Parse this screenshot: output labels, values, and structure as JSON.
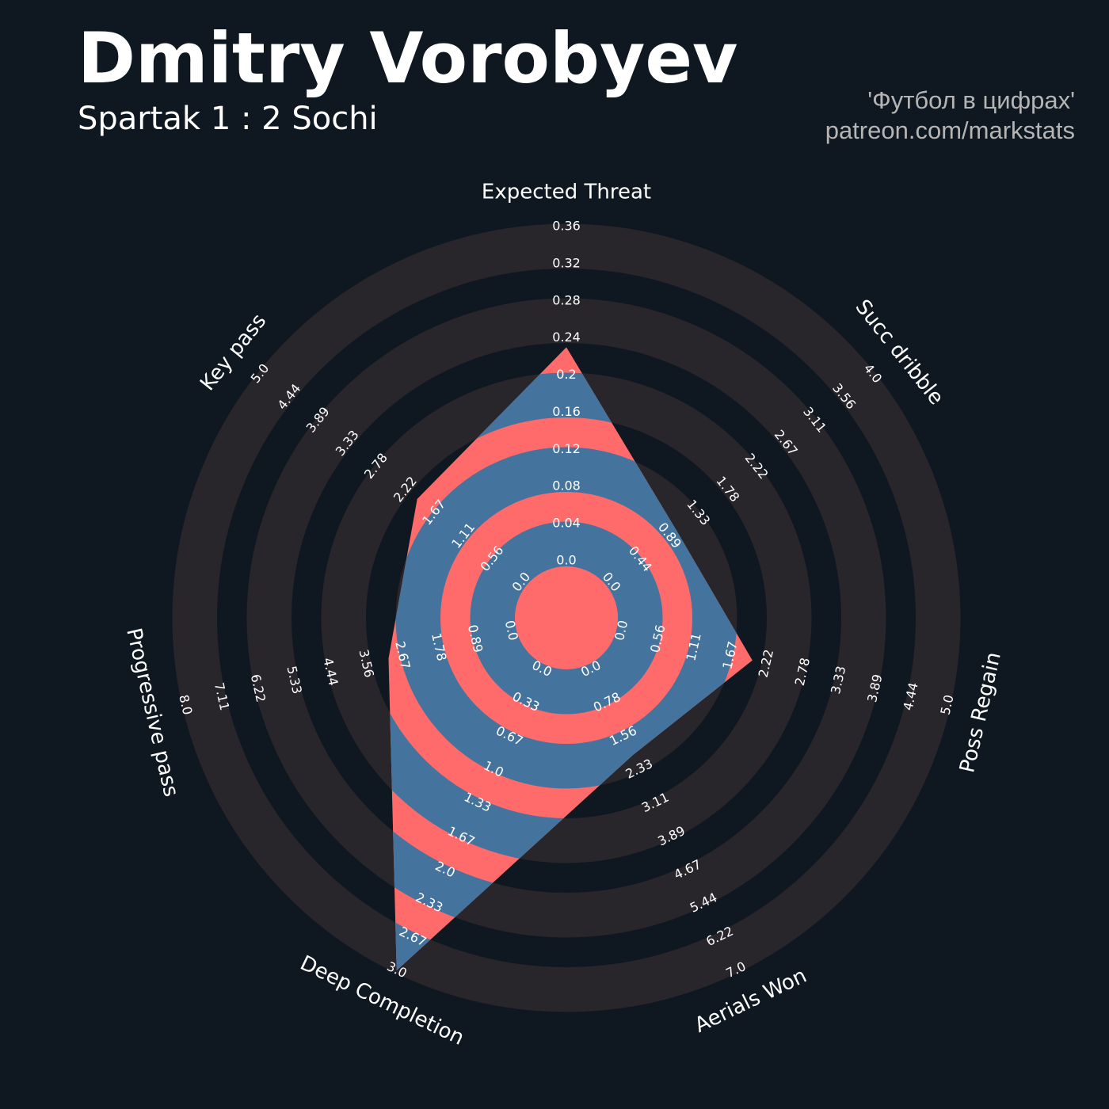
{
  "chart_data": {
    "type": "radar",
    "title": "Dmitry Vorobyev",
    "subtitle": "Spartak 1 : 2 Sochi",
    "annotations": [
      "'Футбол в цифрах'",
      "patreon.com/markstats"
    ],
    "params": [
      "Expected Threat",
      "Succ dribble",
      "Poss Regain",
      "Aerials Won",
      "Deep Completion",
      "Progressive pass",
      "Key pass"
    ],
    "values": [
      0.23,
      1.0,
      2.0,
      2.0,
      3.0,
      3.0,
      2.0
    ],
    "lims": [
      [
        0,
        0.36
      ],
      [
        0,
        4
      ],
      [
        0,
        5
      ],
      [
        0,
        7
      ],
      [
        0,
        3
      ],
      [
        0,
        8
      ],
      [
        0,
        5
      ]
    ],
    "ticks": [
      [
        {
          "value": 0,
          "label": "0.0"
        },
        0.04,
        0.08,
        0.12,
        0.16,
        0.2,
        0.24,
        0.28,
        0.32,
        0.36
      ],
      [
        {
          "value": 0,
          "label": "0.0"
        },
        0.44,
        0.89,
        1.33,
        1.78,
        2.22,
        2.67,
        3.11,
        3.56,
        {
          "value": 4,
          "label": "4.0"
        }
      ],
      [
        {
          "value": 0,
          "label": "0.0"
        },
        0.56,
        1.11,
        1.67,
        2.22,
        2.78,
        3.33,
        3.89,
        4.44,
        {
          "value": 5,
          "label": "5.0"
        }
      ],
      [
        {
          "value": 0,
          "label": "0.0"
        },
        0.78,
        1.56,
        2.33,
        3.11,
        3.89,
        4.67,
        5.44,
        6.22,
        {
          "value": 7,
          "label": "7.0"
        }
      ],
      [
        {
          "value": 0,
          "label": "0.0"
        },
        0.33,
        0.67,
        {
          "value": 1,
          "label": "1.0"
        },
        1.33,
        1.67,
        {
          "value": 2,
          "label": "2.0"
        },
        2.33,
        2.67,
        {
          "value": 3,
          "label": "3.0"
        }
      ],
      [
        {
          "value": 0,
          "label": "0.0"
        },
        0.89,
        1.78,
        2.67,
        3.56,
        4.44,
        5.33,
        6.22,
        7.11,
        {
          "value": 8,
          "label": "8.0"
        }
      ],
      [
        {
          "value": 0,
          "label": "0.0"
        },
        0.56,
        1.11,
        1.67,
        2.22,
        2.78,
        3.33,
        3.89,
        4.44,
        {
          "value": 5,
          "label": "5.0"
        }
      ]
    ],
    "colors": {
      "background": "#0f1820",
      "ring": "#28252b",
      "fill": "#44749d",
      "fill_alt": "#ff6b6b"
    }
  }
}
